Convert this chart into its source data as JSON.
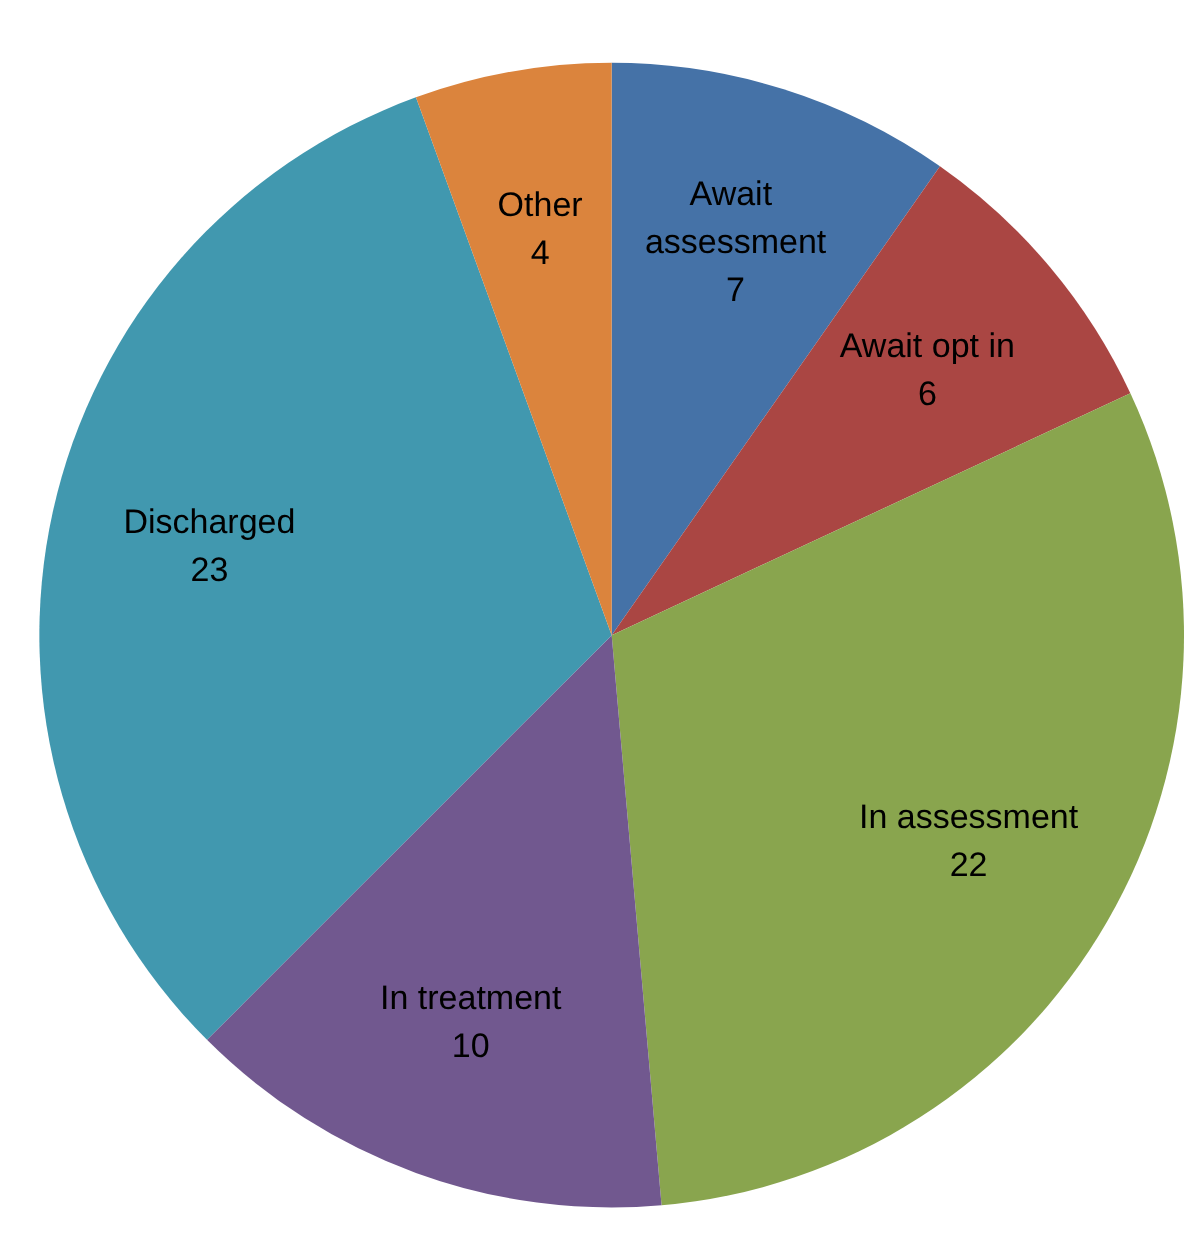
{
  "chart_data": {
    "type": "pie",
    "categories": [
      "Await assessment",
      "Await opt in",
      "In assessment",
      "In treatment",
      "Discharged",
      "Other"
    ],
    "values": [
      7,
      6,
      22,
      10,
      23,
      4
    ],
    "colors": [
      "#4572a7",
      "#aa4643",
      "#89a54e",
      "#71588f",
      "#4198af",
      "#db843d"
    ],
    "data_labels": true,
    "legend": false
  }
}
